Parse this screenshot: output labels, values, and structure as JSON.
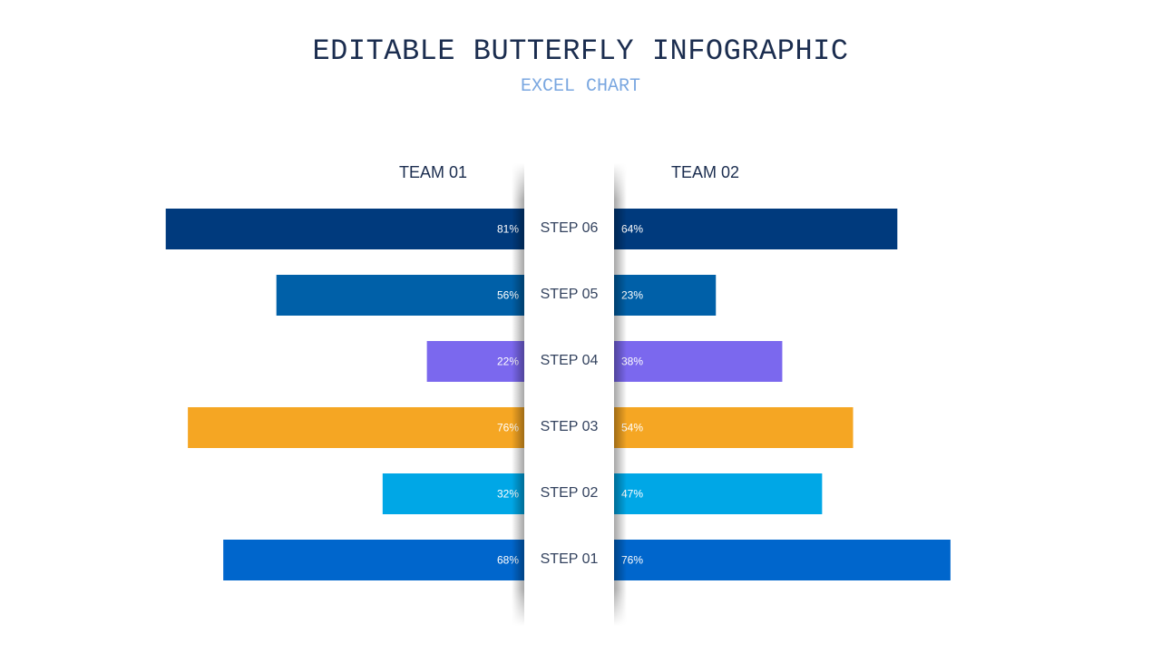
{
  "title": "EDITABLE BUTTERFLY INFOGRAPHIC",
  "subtitle": "EXCEL CHART",
  "chart_data": {
    "type": "bar",
    "orientation": "butterfly",
    "categories": [
      "STEP 06",
      "STEP 05",
      "STEP 04",
      "STEP 03",
      "STEP 02",
      "STEP 01"
    ],
    "series": [
      {
        "name": "TEAM 01",
        "values": [
          81,
          56,
          22,
          76,
          32,
          68
        ]
      },
      {
        "name": "TEAM 02",
        "values": [
          64,
          23,
          38,
          54,
          47,
          76
        ]
      }
    ],
    "value_labels": {
      "left": [
        "81%",
        "56%",
        "22%",
        "76%",
        "32%",
        "68%"
      ],
      "right": [
        "64%",
        "23%",
        "38%",
        "54%",
        "47%",
        "76%"
      ]
    },
    "colors": [
      "#003a7d",
      "#0060a8",
      "#7b68ee",
      "#f5a623",
      "#00a7e6",
      "#0066cc"
    ],
    "xlim": [
      0,
      100
    ],
    "grid": false
  }
}
